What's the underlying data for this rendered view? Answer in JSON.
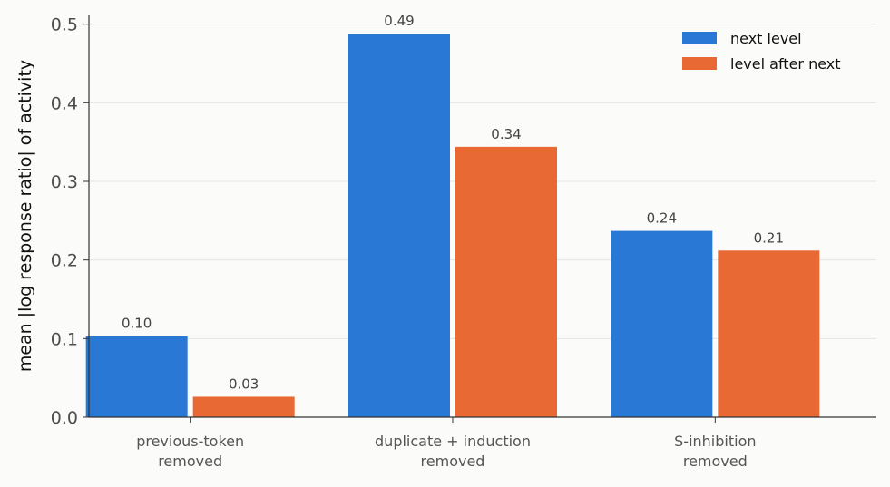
{
  "chart_data": {
    "type": "bar",
    "categories": [
      [
        "previous-token",
        "removed"
      ],
      [
        "duplicate + induction",
        "removed"
      ],
      [
        "S-inhibition",
        "removed"
      ]
    ],
    "series": [
      {
        "name": "next level",
        "values": [
          0.103,
          0.488,
          0.237
        ],
        "labels": [
          "0.10",
          "0.49",
          "0.24"
        ],
        "color": "#2a78d6"
      },
      {
        "name": "level after next",
        "values": [
          0.026,
          0.344,
          0.212
        ],
        "labels": [
          "0.03",
          "0.34",
          "0.21"
        ],
        "color": "#e96935"
      }
    ],
    "title": "",
    "xlabel": "",
    "ylabel": "mean |log response ratio| of activity",
    "ylim": [
      0,
      0.51
    ],
    "yticks": [
      0.0,
      0.1,
      0.2,
      0.3,
      0.4,
      0.5
    ],
    "ytick_labels": [
      "0.0",
      "0.1",
      "0.2",
      "0.3",
      "0.4",
      "0.5"
    ],
    "grid": "horizontal",
    "legend_position": "top-right"
  }
}
